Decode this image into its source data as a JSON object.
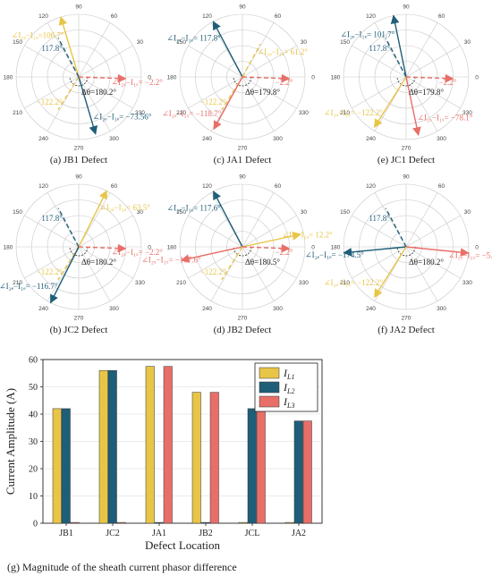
{
  "colors": {
    "IL1": "#e8c547",
    "IL2": "#1f5e78",
    "IL3": "#e86f68",
    "grid": "#c8c8c8"
  },
  "polar_angle_labels": [
    "0",
    "30",
    "60",
    "90",
    "120",
    "150",
    "180",
    "210",
    "240",
    "270",
    "300",
    "330"
  ],
  "bar_chart": {
    "caption": "(g) Magnitude of the sheath current phasor difference",
    "xlabel": "Defect Location",
    "ylabel": "Current Amplitude (A)",
    "yticks": [
      "0",
      "10",
      "20",
      "30",
      "40",
      "50",
      "60"
    ],
    "legend": [
      {
        "main": "I",
        "sub": "L1"
      },
      {
        "main": "I",
        "sub": "L2"
      },
      {
        "main": "I",
        "sub": "L3"
      }
    ]
  },
  "chart_data": [
    {
      "type": "polar",
      "caption": "(a) JB1 Defect",
      "phasors": [
        {
          "series": "IL1",
          "angle": 106.7,
          "magnitude": 1.0,
          "style": "solid",
          "label": "∠I₂ₐ−I₁ₐ=106.7°"
        },
        {
          "series": "IL1",
          "angle": -122.2,
          "magnitude": 0.62,
          "style": "dashed",
          "label": "−122.2°"
        },
        {
          "series": "IL2",
          "angle": -73.56,
          "magnitude": 0.95,
          "style": "solid",
          "label": "∠I₂ₑ−I₁ₑ= −73.56°"
        },
        {
          "series": "IL2",
          "angle": 117.8,
          "magnitude": 0.7,
          "style": "dashed",
          "label": "117.8°"
        },
        {
          "series": "IL3",
          "angle": -2.2,
          "magnitude": 0.75,
          "style": "dashed",
          "label": "∠I₂ₓ−I₁ₓ= −2.2°"
        }
      ],
      "delta_theta": "Δθ=180.2°"
    },
    {
      "type": "polar",
      "caption": "(c) JA1 Defect",
      "phasors": [
        {
          "series": "IL2",
          "angle": 117.8,
          "magnitude": 1.0,
          "style": "solid",
          "label": "∠I₂ₑ−I₁ₑ= 117.8°"
        },
        {
          "series": "IL1",
          "angle": 61.2,
          "magnitude": 0.6,
          "style": "dashed",
          "label": "∠I₂ₐ−I₁ₐ= 61.2°"
        },
        {
          "series": "IL1",
          "angle": -122.2,
          "magnitude": 0.62,
          "style": "dashed",
          "label": "−122.2°"
        },
        {
          "series": "IL3",
          "angle": -2.2,
          "magnitude": 0.75,
          "style": "dashed",
          "label": "−2.2°"
        },
        {
          "series": "IL3",
          "angle": -118.7,
          "magnitude": 0.95,
          "style": "solid",
          "label": "∠I₂ₓ−I₁ₓ= −118.7°"
        }
      ],
      "delta_theta": "Δθ=179.8°"
    },
    {
      "type": "polar",
      "caption": "(e) JC1 Defect",
      "phasors": [
        {
          "series": "IL2",
          "angle": 101.7,
          "magnitude": 1.0,
          "style": "solid",
          "label": "∠I₂ₑ−I₁ₑ= 101.7°"
        },
        {
          "series": "IL2",
          "angle": 117.8,
          "magnitude": 0.7,
          "style": "dashed",
          "label": "117.8°"
        },
        {
          "series": "IL1",
          "angle": -122.2,
          "magnitude": 0.95,
          "style": "solid",
          "label": "∠I₂ₐ−I₁ₐ= −122.2°"
        },
        {
          "series": "IL3",
          "angle": -2.2,
          "magnitude": 0.75,
          "style": "dashed",
          "label": "−2.2°"
        },
        {
          "series": "IL3",
          "angle": -78.1,
          "magnitude": 0.95,
          "style": "solid",
          "label": "∠I₂ₓ−I₁ₓ= −78.1°"
        }
      ],
      "delta_theta": "Δθ=179.8°"
    },
    {
      "type": "polar",
      "caption": "(b) JC2 Defect",
      "phasors": [
        {
          "series": "IL1",
          "angle": 63.5,
          "magnitude": 1.0,
          "style": "solid",
          "label": "∠I₂ₐ−I₁ₐ= 63.5°"
        },
        {
          "series": "IL2",
          "angle": 117.8,
          "magnitude": 0.7,
          "style": "dashed",
          "label": "117.8°"
        },
        {
          "series": "IL1",
          "angle": -122.2,
          "magnitude": 0.62,
          "style": "dashed",
          "label": "−122.2°"
        },
        {
          "series": "IL2",
          "angle": -116.7,
          "magnitude": 1.0,
          "style": "solid",
          "label": "∠I₂ₑ−I₁ₑ= −116.7°"
        },
        {
          "series": "IL3",
          "angle": -2.2,
          "magnitude": 0.75,
          "style": "dashed",
          "label": "∠I₂ₓ−I₁ₓ= −2.2°"
        }
      ],
      "delta_theta": "Δθ=180.2°"
    },
    {
      "type": "polar",
      "caption": "(d) JB2 Defect",
      "phasors": [
        {
          "series": "IL2",
          "angle": 117.6,
          "magnitude": 1.0,
          "style": "solid",
          "label": "∠I₂ₑ−I₁ₑ= 117.6°"
        },
        {
          "series": "IL1",
          "angle": 12.2,
          "magnitude": 0.95,
          "style": "solid",
          "label": "∠I₂ₐ−I₁ₐ= 12.2°"
        },
        {
          "series": "IL3",
          "angle": -167.6,
          "magnitude": 1.0,
          "style": "solid",
          "label": "∠I₂ₓ−I₁ₓ= −167.6°"
        },
        {
          "series": "IL3",
          "angle": -2.2,
          "magnitude": 0.75,
          "style": "dashed",
          "label": "−2.2°"
        },
        {
          "series": "IL1",
          "angle": -122.2,
          "magnitude": 0.62,
          "style": "dashed",
          "label": "−122.2°"
        }
      ],
      "delta_theta": "Δθ=180.5°"
    },
    {
      "type": "polar",
      "caption": "(f) JA2 Defect",
      "phasors": [
        {
          "series": "IL2",
          "angle": -174.5,
          "magnitude": 1.0,
          "style": "solid",
          "label": "∠I₂ₑ−I₁ₑ= −174.5°"
        },
        {
          "series": "IL2",
          "angle": 117.8,
          "magnitude": 0.7,
          "style": "dashed",
          "label": "117.8°"
        },
        {
          "series": "IL3",
          "angle": -5.7,
          "magnitude": 1.0,
          "style": "solid",
          "label": "∠I₂ₓ−I₁ₓ= −5.7°"
        },
        {
          "series": "IL1",
          "angle": -122.2,
          "magnitude": 0.95,
          "style": "solid",
          "label": "∠I₂ₐ−I₁ₐ= −122.2°"
        }
      ],
      "delta_theta": "Δθ=180.2°"
    },
    {
      "type": "bar",
      "categories": [
        "JB1",
        "JC2",
        "JA1",
        "JB2",
        "JCL",
        "JA2"
      ],
      "series": [
        {
          "name": "IL1",
          "values": [
            42,
            56,
            57.5,
            48,
            0.3,
            0.3
          ]
        },
        {
          "name": "IL2",
          "values": [
            42,
            56,
            0.3,
            0.3,
            42,
            37.5
          ]
        },
        {
          "name": "IL3",
          "values": [
            0.3,
            0.3,
            57.5,
            48,
            42,
            37.5
          ]
        }
      ],
      "ylim": [
        0,
        60
      ],
      "xlabel": "Defect Location",
      "ylabel": "Current Amplitude (A)",
      "title": "(g) Magnitude of the sheath current phasor difference"
    }
  ]
}
